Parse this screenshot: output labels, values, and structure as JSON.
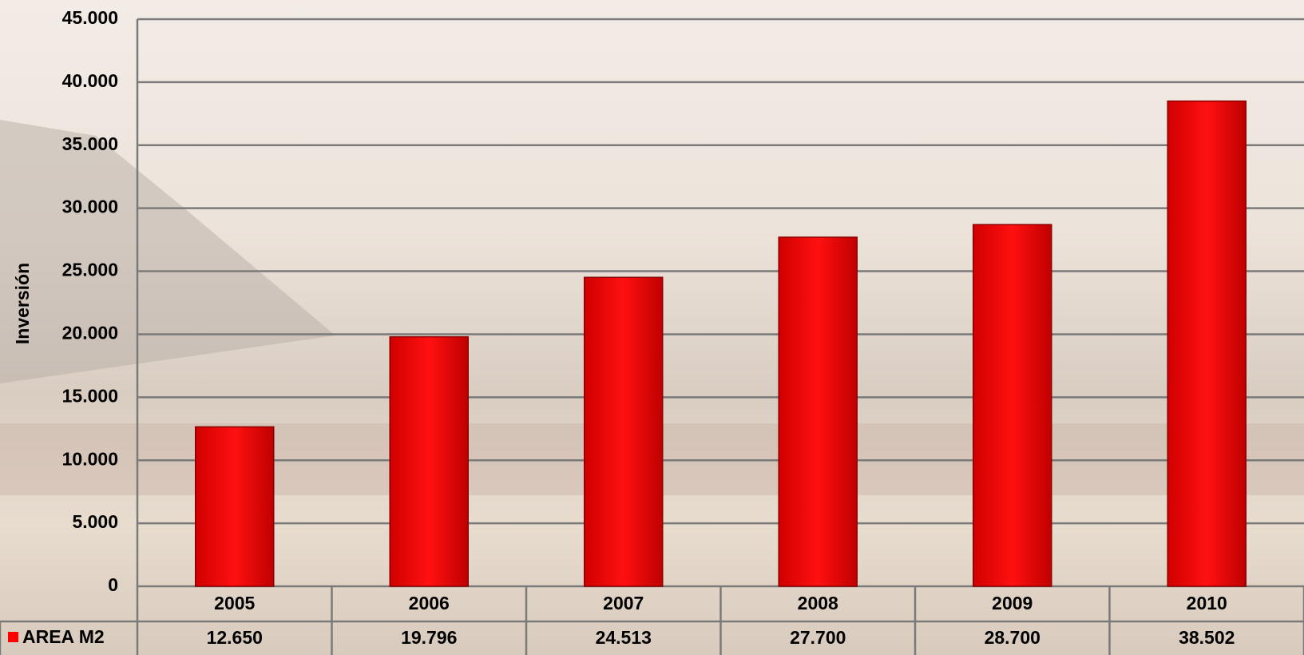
{
  "chart_data": {
    "type": "bar",
    "y_axis_label": "Inversión",
    "categories": [
      "2005",
      "2006",
      "2007",
      "2008",
      "2009",
      "2010"
    ],
    "series": [
      {
        "name": "AREA M2",
        "color": "#ff0000",
        "values": [
          12650,
          19796,
          24513,
          27700,
          28700,
          38502
        ],
        "value_labels": [
          "12.650",
          "19.796",
          "24.513",
          "27.700",
          "28.700",
          "38.502"
        ]
      }
    ],
    "ylim": [
      0,
      45000
    ],
    "yticks": [
      0,
      {
        "value": 5000,
        "label": "5.000"
      },
      {
        "value": 10000,
        "label": "10.000"
      },
      {
        "value": 15000,
        "label": "15.000"
      },
      {
        "value": 20000,
        "label": "20.000"
      },
      {
        "value": 25000,
        "label": "25.000"
      },
      {
        "value": 30000,
        "label": "30.000"
      },
      {
        "value": 35000,
        "label": "35.000"
      },
      {
        "value": 40000,
        "label": "40.000"
      },
      {
        "value": 45000,
        "label": "45.000"
      }
    ],
    "grid": true
  }
}
